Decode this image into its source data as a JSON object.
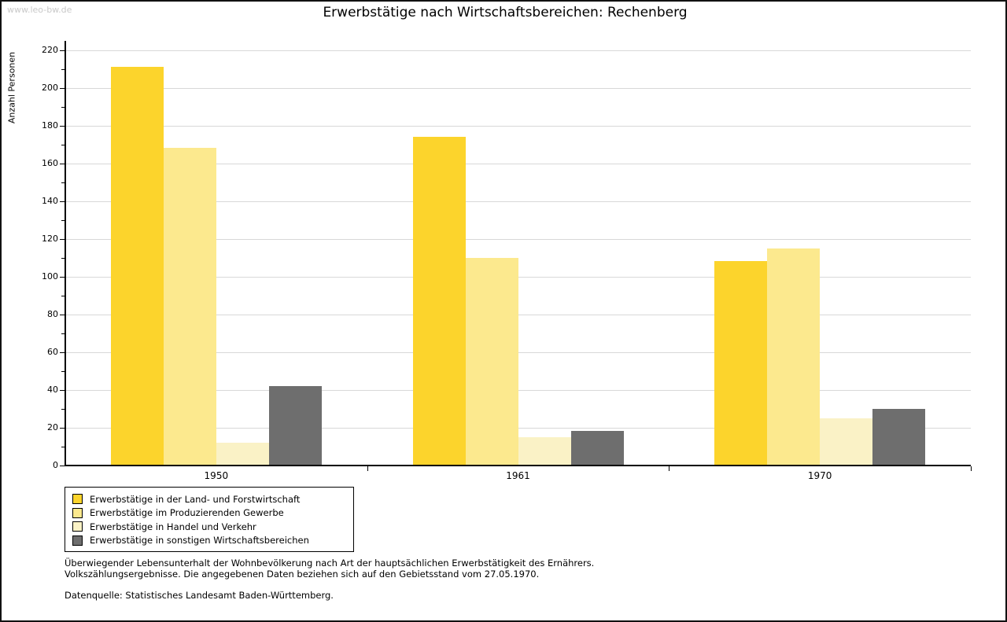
{
  "watermark": "www.leo-bw.de",
  "title": "Erwerbstätige nach Wirtschaftsbereichen: Rechenberg",
  "chart_data": {
    "type": "bar",
    "categories": [
      "1950",
      "1961",
      "1970"
    ],
    "series": [
      {
        "name": "Erwerbstätige in der Land- und Forstwirtschaft",
        "color": "#fcd42c",
        "values": [
          211,
          174,
          108
        ]
      },
      {
        "name": "Erwerbstätige im Produzierenden Gewerbe",
        "color": "#fce98e",
        "values": [
          168,
          110,
          115
        ]
      },
      {
        "name": "Erwerbstätige in Handel und Verkehr",
        "color": "#faf2c6",
        "values": [
          12,
          15,
          25
        ]
      },
      {
        "name": "Erwerbstätige in sonstigen Wirtschaftsbereichen",
        "color": "#6e6e6e",
        "values": [
          42,
          18,
          30
        ]
      }
    ],
    "title": "Erwerbstätige nach Wirtschaftsbereichen: Rechenberg",
    "xlabel": "",
    "ylabel": "Anzahl Personen",
    "ylim": [
      0,
      220
    ],
    "ytick_step": 20,
    "y_minor_step": 10,
    "grid": true,
    "gridline_color": "#d8d8d8",
    "legend_position": "bottom-left"
  },
  "footnotes": [
    "Überwiegender Lebensunterhalt der Wohnbevölkerung nach Art der hauptsächlichen Erwerbstätigkeit des Ernährers.",
    "Volkszählungsergebnisse. Die angegebenen Daten beziehen sich auf den Gebietsstand vom 27.05.1970."
  ],
  "source": "Datenquelle: Statistisches Landesamt Baden-Württemberg."
}
